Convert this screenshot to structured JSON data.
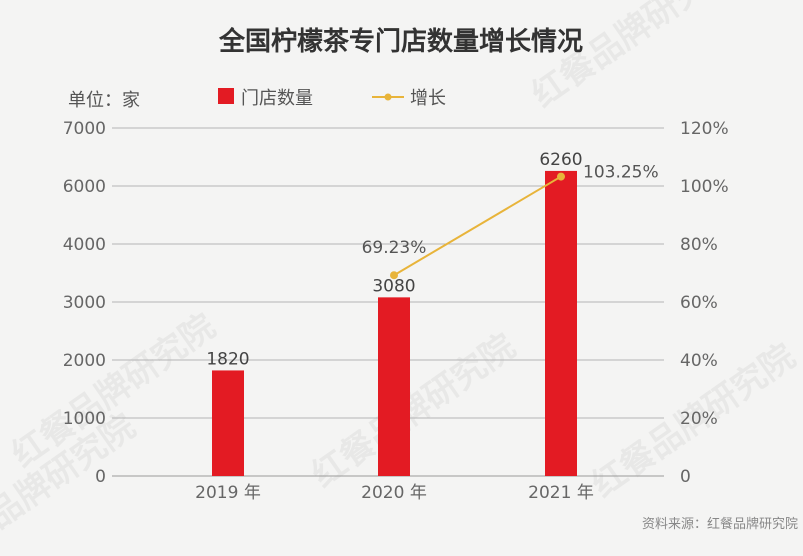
{
  "chart_data": {
    "type": "bar",
    "title": "全国柠檬茶专门店数量增长情况",
    "unit_label": "单位：家",
    "categories": [
      "2019 年",
      "2020 年",
      "2021 年"
    ],
    "series": [
      {
        "name": "门店数量",
        "type": "bar",
        "axis": "left",
        "values": [
          1820,
          3080,
          6260
        ],
        "labels": [
          "1820",
          "3080",
          "6260"
        ],
        "color": "#e31b23"
      },
      {
        "name": "增长",
        "type": "line",
        "axis": "right",
        "values": [
          null,
          69.23,
          103.25
        ],
        "labels": [
          null,
          "69.23%",
          "103.25%"
        ],
        "color": "#e8b43a"
      }
    ],
    "y_left": {
      "ticks": [
        "0",
        "1000",
        "2000",
        "3000",
        "4000",
        "6000",
        "7000"
      ],
      "tick_values": [
        0,
        1000,
        2000,
        3000,
        4000,
        6000,
        7000
      ]
    },
    "y_right": {
      "ticks": [
        "0",
        "20%",
        "40%",
        "60%",
        "80%",
        "100%",
        "120%"
      ],
      "range": [
        0,
        120
      ]
    },
    "legend_position": "top",
    "grid": true
  },
  "source": "资料来源：红餐品牌研究院",
  "watermark": "红餐品牌研究院"
}
